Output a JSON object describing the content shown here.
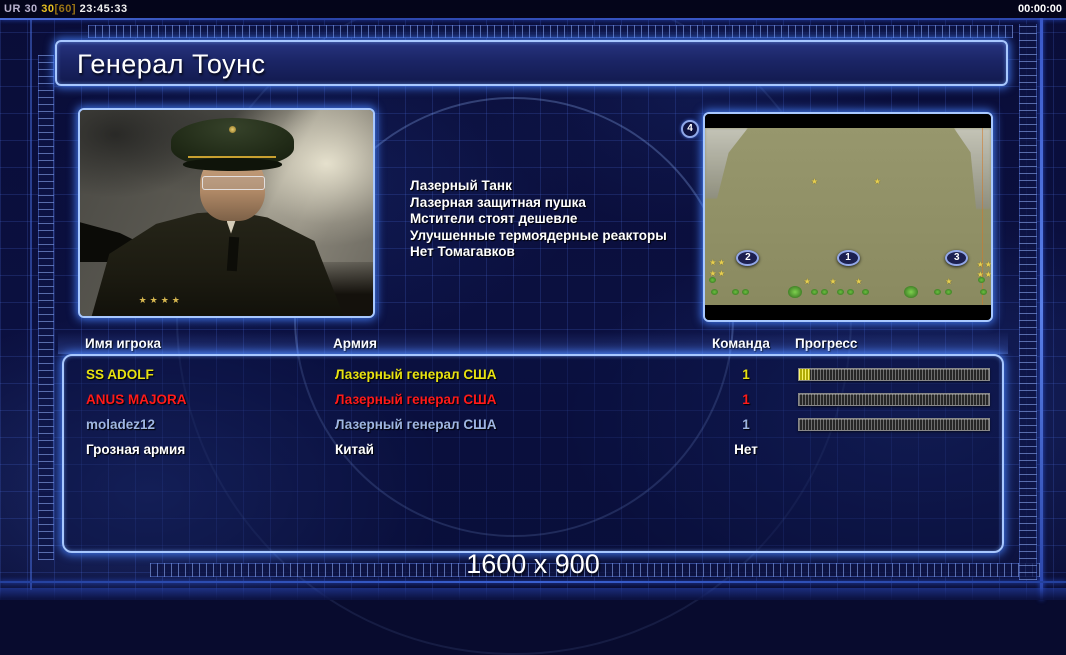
{
  "status_bar": {
    "ur_label": "UR 30",
    "fps_value": "30",
    "fps_max": "[60]",
    "clock": "23:45:33",
    "match_timer": "00:00:00"
  },
  "title": "Генерал Тоунс",
  "general_perks": [
    "Лазерный Танк",
    "Лазерная защитная пушка",
    "Мстители стоят дешевле",
    "Улучшенные термоядерные реакторы",
    "Нет Томагавков"
  ],
  "minimap": {
    "players_badge": "4",
    "start_markers": [
      "2",
      "1",
      "3"
    ]
  },
  "players_table": {
    "headers": {
      "name": "Имя игрока",
      "army": "Армия",
      "team": "Команда",
      "progress": "Прогресс"
    },
    "rows": [
      {
        "name": "SS ADOLF",
        "army": "Лазерный генерал США",
        "team": "1",
        "color": "#e8e211",
        "progress_pct": 6,
        "has_bar": true
      },
      {
        "name": "ANUS MAJORA",
        "army": "Лазерный генерал США",
        "team": "1",
        "color": "#ff1a1a",
        "progress_pct": 0,
        "has_bar": true
      },
      {
        "name": "moladez12",
        "army": "Лазерный генерал США",
        "team": "1",
        "color": "#9fb6e2",
        "progress_pct": 0,
        "has_bar": true
      },
      {
        "name": "Грозная армия",
        "army": "Китай",
        "team": "Нет",
        "color": "#ffffff",
        "progress_pct": 0,
        "has_bar": false
      }
    ]
  },
  "footer": {
    "resolution": "1600 x 900"
  },
  "colors": {
    "accent_border": "#a8c8ff",
    "glow": "#4682ff",
    "yellow": "#e8e211",
    "red": "#ff1a1a",
    "pale_blue": "#9fb6e2",
    "terrain": "#909066"
  }
}
